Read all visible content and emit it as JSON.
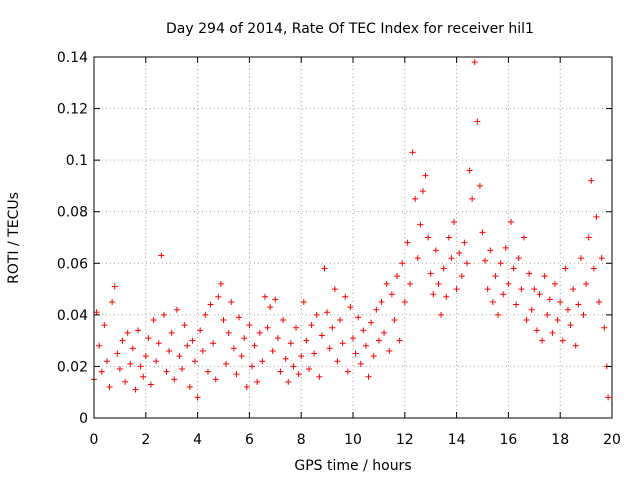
{
  "chart_data": {
    "type": "scatter",
    "title": "Day 294 of 2014, Rate Of TEC Index for receiver hil1",
    "xlabel": "GPS time / hours",
    "ylabel": "ROTI / TECUs",
    "xlim": [
      0,
      20
    ],
    "ylim": [
      0,
      0.14
    ],
    "xticks": [
      0,
      2,
      4,
      6,
      8,
      10,
      12,
      14,
      16,
      18,
      20
    ],
    "yticks": [
      0,
      0.02,
      0.04,
      0.06,
      0.08,
      0.1,
      0.12,
      0.14
    ],
    "xtick_labels": [
      "0",
      "2",
      "4",
      "6",
      "8",
      "10",
      "12",
      "14",
      "16",
      "18",
      "20"
    ],
    "ytick_labels": [
      "0",
      "0.02",
      "0.04",
      "0.06",
      "0.08",
      "0.1",
      "0.12",
      "0.14"
    ],
    "grid": true,
    "marker": "+",
    "series_color": "#ff0000",
    "series": [
      {
        "name": "ROTI",
        "points": [
          [
            0.0,
            0.015
          ],
          [
            0.1,
            0.041
          ],
          [
            0.2,
            0.028
          ],
          [
            0.3,
            0.018
          ],
          [
            0.4,
            0.036
          ],
          [
            0.5,
            0.022
          ],
          [
            0.6,
            0.012
          ],
          [
            0.7,
            0.045
          ],
          [
            0.8,
            0.051
          ],
          [
            0.9,
            0.025
          ],
          [
            1.0,
            0.019
          ],
          [
            1.1,
            0.03
          ],
          [
            1.2,
            0.014
          ],
          [
            1.3,
            0.033
          ],
          [
            1.4,
            0.021
          ],
          [
            1.5,
            0.027
          ],
          [
            1.6,
            0.011
          ],
          [
            1.7,
            0.034
          ],
          [
            1.8,
            0.02
          ],
          [
            1.9,
            0.016
          ],
          [
            2.0,
            0.024
          ],
          [
            2.1,
            0.031
          ],
          [
            2.2,
            0.013
          ],
          [
            2.3,
            0.038
          ],
          [
            2.4,
            0.022
          ],
          [
            2.5,
            0.029
          ],
          [
            2.6,
            0.063
          ],
          [
            2.7,
            0.04
          ],
          [
            2.8,
            0.018
          ],
          [
            2.9,
            0.026
          ],
          [
            3.0,
            0.033
          ],
          [
            3.1,
            0.015
          ],
          [
            3.2,
            0.042
          ],
          [
            3.3,
            0.024
          ],
          [
            3.4,
            0.019
          ],
          [
            3.5,
            0.036
          ],
          [
            3.6,
            0.028
          ],
          [
            3.7,
            0.012
          ],
          [
            3.8,
            0.03
          ],
          [
            3.9,
            0.022
          ],
          [
            4.0,
            0.008
          ],
          [
            4.1,
            0.034
          ],
          [
            4.2,
            0.026
          ],
          [
            4.3,
            0.04
          ],
          [
            4.4,
            0.018
          ],
          [
            4.5,
            0.044
          ],
          [
            4.6,
            0.029
          ],
          [
            4.7,
            0.015
          ],
          [
            4.8,
            0.047
          ],
          [
            4.9,
            0.052
          ],
          [
            5.0,
            0.038
          ],
          [
            5.1,
            0.021
          ],
          [
            5.2,
            0.033
          ],
          [
            5.3,
            0.045
          ],
          [
            5.4,
            0.027
          ],
          [
            5.5,
            0.017
          ],
          [
            5.6,
            0.039
          ],
          [
            5.7,
            0.024
          ],
          [
            5.8,
            0.031
          ],
          [
            5.9,
            0.012
          ],
          [
            6.0,
            0.036
          ],
          [
            6.1,
            0.02
          ],
          [
            6.2,
            0.028
          ],
          [
            6.3,
            0.014
          ],
          [
            6.4,
            0.033
          ],
          [
            6.5,
            0.022
          ],
          [
            6.6,
            0.047
          ],
          [
            6.7,
            0.035
          ],
          [
            6.8,
            0.043
          ],
          [
            6.9,
            0.026
          ],
          [
            7.0,
            0.046
          ],
          [
            7.1,
            0.031
          ],
          [
            7.2,
            0.018
          ],
          [
            7.3,
            0.038
          ],
          [
            7.4,
            0.023
          ],
          [
            7.5,
            0.014
          ],
          [
            7.6,
            0.029
          ],
          [
            7.7,
            0.02
          ],
          [
            7.8,
            0.035
          ],
          [
            7.9,
            0.017
          ],
          [
            8.0,
            0.024
          ],
          [
            8.1,
            0.045
          ],
          [
            8.2,
            0.03
          ],
          [
            8.3,
            0.019
          ],
          [
            8.4,
            0.036
          ],
          [
            8.5,
            0.025
          ],
          [
            8.6,
            0.04
          ],
          [
            8.7,
            0.016
          ],
          [
            8.8,
            0.032
          ],
          [
            8.9,
            0.058
          ],
          [
            9.0,
            0.041
          ],
          [
            9.1,
            0.027
          ],
          [
            9.2,
            0.035
          ],
          [
            9.3,
            0.05
          ],
          [
            9.4,
            0.022
          ],
          [
            9.5,
            0.038
          ],
          [
            9.6,
            0.029
          ],
          [
            9.7,
            0.047
          ],
          [
            9.8,
            0.018
          ],
          [
            9.9,
            0.043
          ],
          [
            10.0,
            0.031
          ],
          [
            10.1,
            0.025
          ],
          [
            10.2,
            0.039
          ],
          [
            10.3,
            0.021
          ],
          [
            10.4,
            0.034
          ],
          [
            10.5,
            0.028
          ],
          [
            10.6,
            0.016
          ],
          [
            10.7,
            0.037
          ],
          [
            10.8,
            0.024
          ],
          [
            10.9,
            0.042
          ],
          [
            11.0,
            0.03
          ],
          [
            11.1,
            0.045
          ],
          [
            11.2,
            0.033
          ],
          [
            11.3,
            0.052
          ],
          [
            11.4,
            0.026
          ],
          [
            11.5,
            0.048
          ],
          [
            11.6,
            0.038
          ],
          [
            11.7,
            0.055
          ],
          [
            11.8,
            0.03
          ],
          [
            11.9,
            0.06
          ],
          [
            12.0,
            0.045
          ],
          [
            12.1,
            0.068
          ],
          [
            12.2,
            0.052
          ],
          [
            12.3,
            0.103
          ],
          [
            12.4,
            0.085
          ],
          [
            12.5,
            0.062
          ],
          [
            12.6,
            0.075
          ],
          [
            12.7,
            0.088
          ],
          [
            12.8,
            0.094
          ],
          [
            12.9,
            0.07
          ],
          [
            13.0,
            0.056
          ],
          [
            13.1,
            0.048
          ],
          [
            13.2,
            0.065
          ],
          [
            13.3,
            0.052
          ],
          [
            13.4,
            0.04
          ],
          [
            13.5,
            0.058
          ],
          [
            13.6,
            0.047
          ],
          [
            13.7,
            0.07
          ],
          [
            13.8,
            0.062
          ],
          [
            13.9,
            0.076
          ],
          [
            14.0,
            0.05
          ],
          [
            14.1,
            0.064
          ],
          [
            14.2,
            0.055
          ],
          [
            14.3,
            0.068
          ],
          [
            14.4,
            0.06
          ],
          [
            14.5,
            0.096
          ],
          [
            14.6,
            0.085
          ],
          [
            14.7,
            0.138
          ],
          [
            14.8,
            0.115
          ],
          [
            14.9,
            0.09
          ],
          [
            15.0,
            0.072
          ],
          [
            15.1,
            0.061
          ],
          [
            15.2,
            0.05
          ],
          [
            15.3,
            0.065
          ],
          [
            15.4,
            0.045
          ],
          [
            15.5,
            0.055
          ],
          [
            15.6,
            0.04
          ],
          [
            15.7,
            0.06
          ],
          [
            15.8,
            0.048
          ],
          [
            15.9,
            0.066
          ],
          [
            16.0,
            0.052
          ],
          [
            16.1,
            0.076
          ],
          [
            16.2,
            0.058
          ],
          [
            16.3,
            0.044
          ],
          [
            16.4,
            0.062
          ],
          [
            16.5,
            0.05
          ],
          [
            16.6,
            0.07
          ],
          [
            16.7,
            0.038
          ],
          [
            16.8,
            0.056
          ],
          [
            16.9,
            0.042
          ],
          [
            17.0,
            0.05
          ],
          [
            17.1,
            0.034
          ],
          [
            17.2,
            0.048
          ],
          [
            17.3,
            0.03
          ],
          [
            17.4,
            0.055
          ],
          [
            17.5,
            0.04
          ],
          [
            17.6,
            0.046
          ],
          [
            17.7,
            0.033
          ],
          [
            17.8,
            0.052
          ],
          [
            17.9,
            0.038
          ],
          [
            18.0,
            0.045
          ],
          [
            18.1,
            0.03
          ],
          [
            18.2,
            0.058
          ],
          [
            18.3,
            0.042
          ],
          [
            18.4,
            0.036
          ],
          [
            18.5,
            0.05
          ],
          [
            18.6,
            0.028
          ],
          [
            18.7,
            0.044
          ],
          [
            18.8,
            0.062
          ],
          [
            18.9,
            0.04
          ],
          [
            19.0,
            0.052
          ],
          [
            19.1,
            0.07
          ],
          [
            19.2,
            0.092
          ],
          [
            19.3,
            0.058
          ],
          [
            19.4,
            0.078
          ],
          [
            19.5,
            0.045
          ],
          [
            19.6,
            0.062
          ],
          [
            19.7,
            0.035
          ],
          [
            19.8,
            0.02
          ],
          [
            19.85,
            0.008
          ]
        ]
      }
    ]
  }
}
